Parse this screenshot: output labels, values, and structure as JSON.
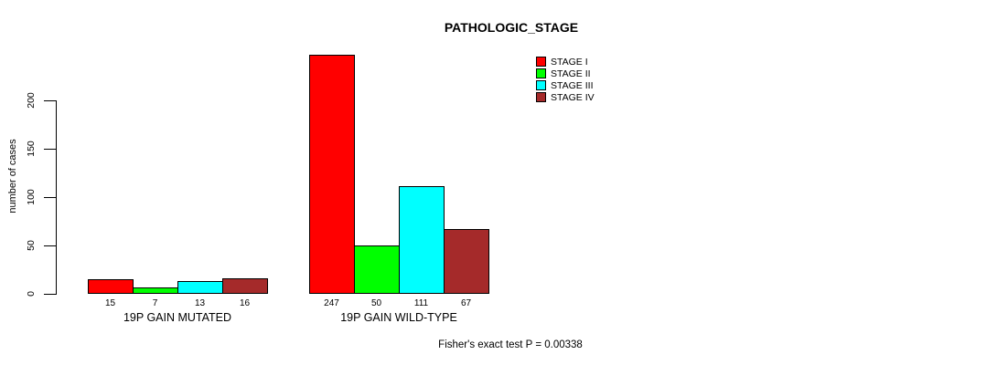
{
  "chart_data": {
    "type": "bar",
    "title": "PATHOLOGIC_STAGE",
    "xlabel": "",
    "ylabel": "number of cases",
    "categories": [
      "19P GAIN MUTATED",
      "19P GAIN WILD-TYPE"
    ],
    "series": [
      {
        "name": "STAGE I",
        "color": "#ff0000",
        "values": [
          15,
          247
        ]
      },
      {
        "name": "STAGE II",
        "color": "#00ff00",
        "values": [
          7,
          50
        ]
      },
      {
        "name": "STAGE III",
        "color": "#00ffff",
        "values": [
          13,
          111
        ]
      },
      {
        "name": "STAGE IV",
        "color": "#a52a2a",
        "values": [
          16,
          67
        ]
      }
    ],
    "yticks": [
      0,
      50,
      100,
      150,
      200
    ],
    "ylim": [
      0,
      250
    ],
    "grid": false,
    "legend_position": "top-right",
    "bar_value_labels": true,
    "annotation": "Fisher's exact test P = 0.00338"
  }
}
